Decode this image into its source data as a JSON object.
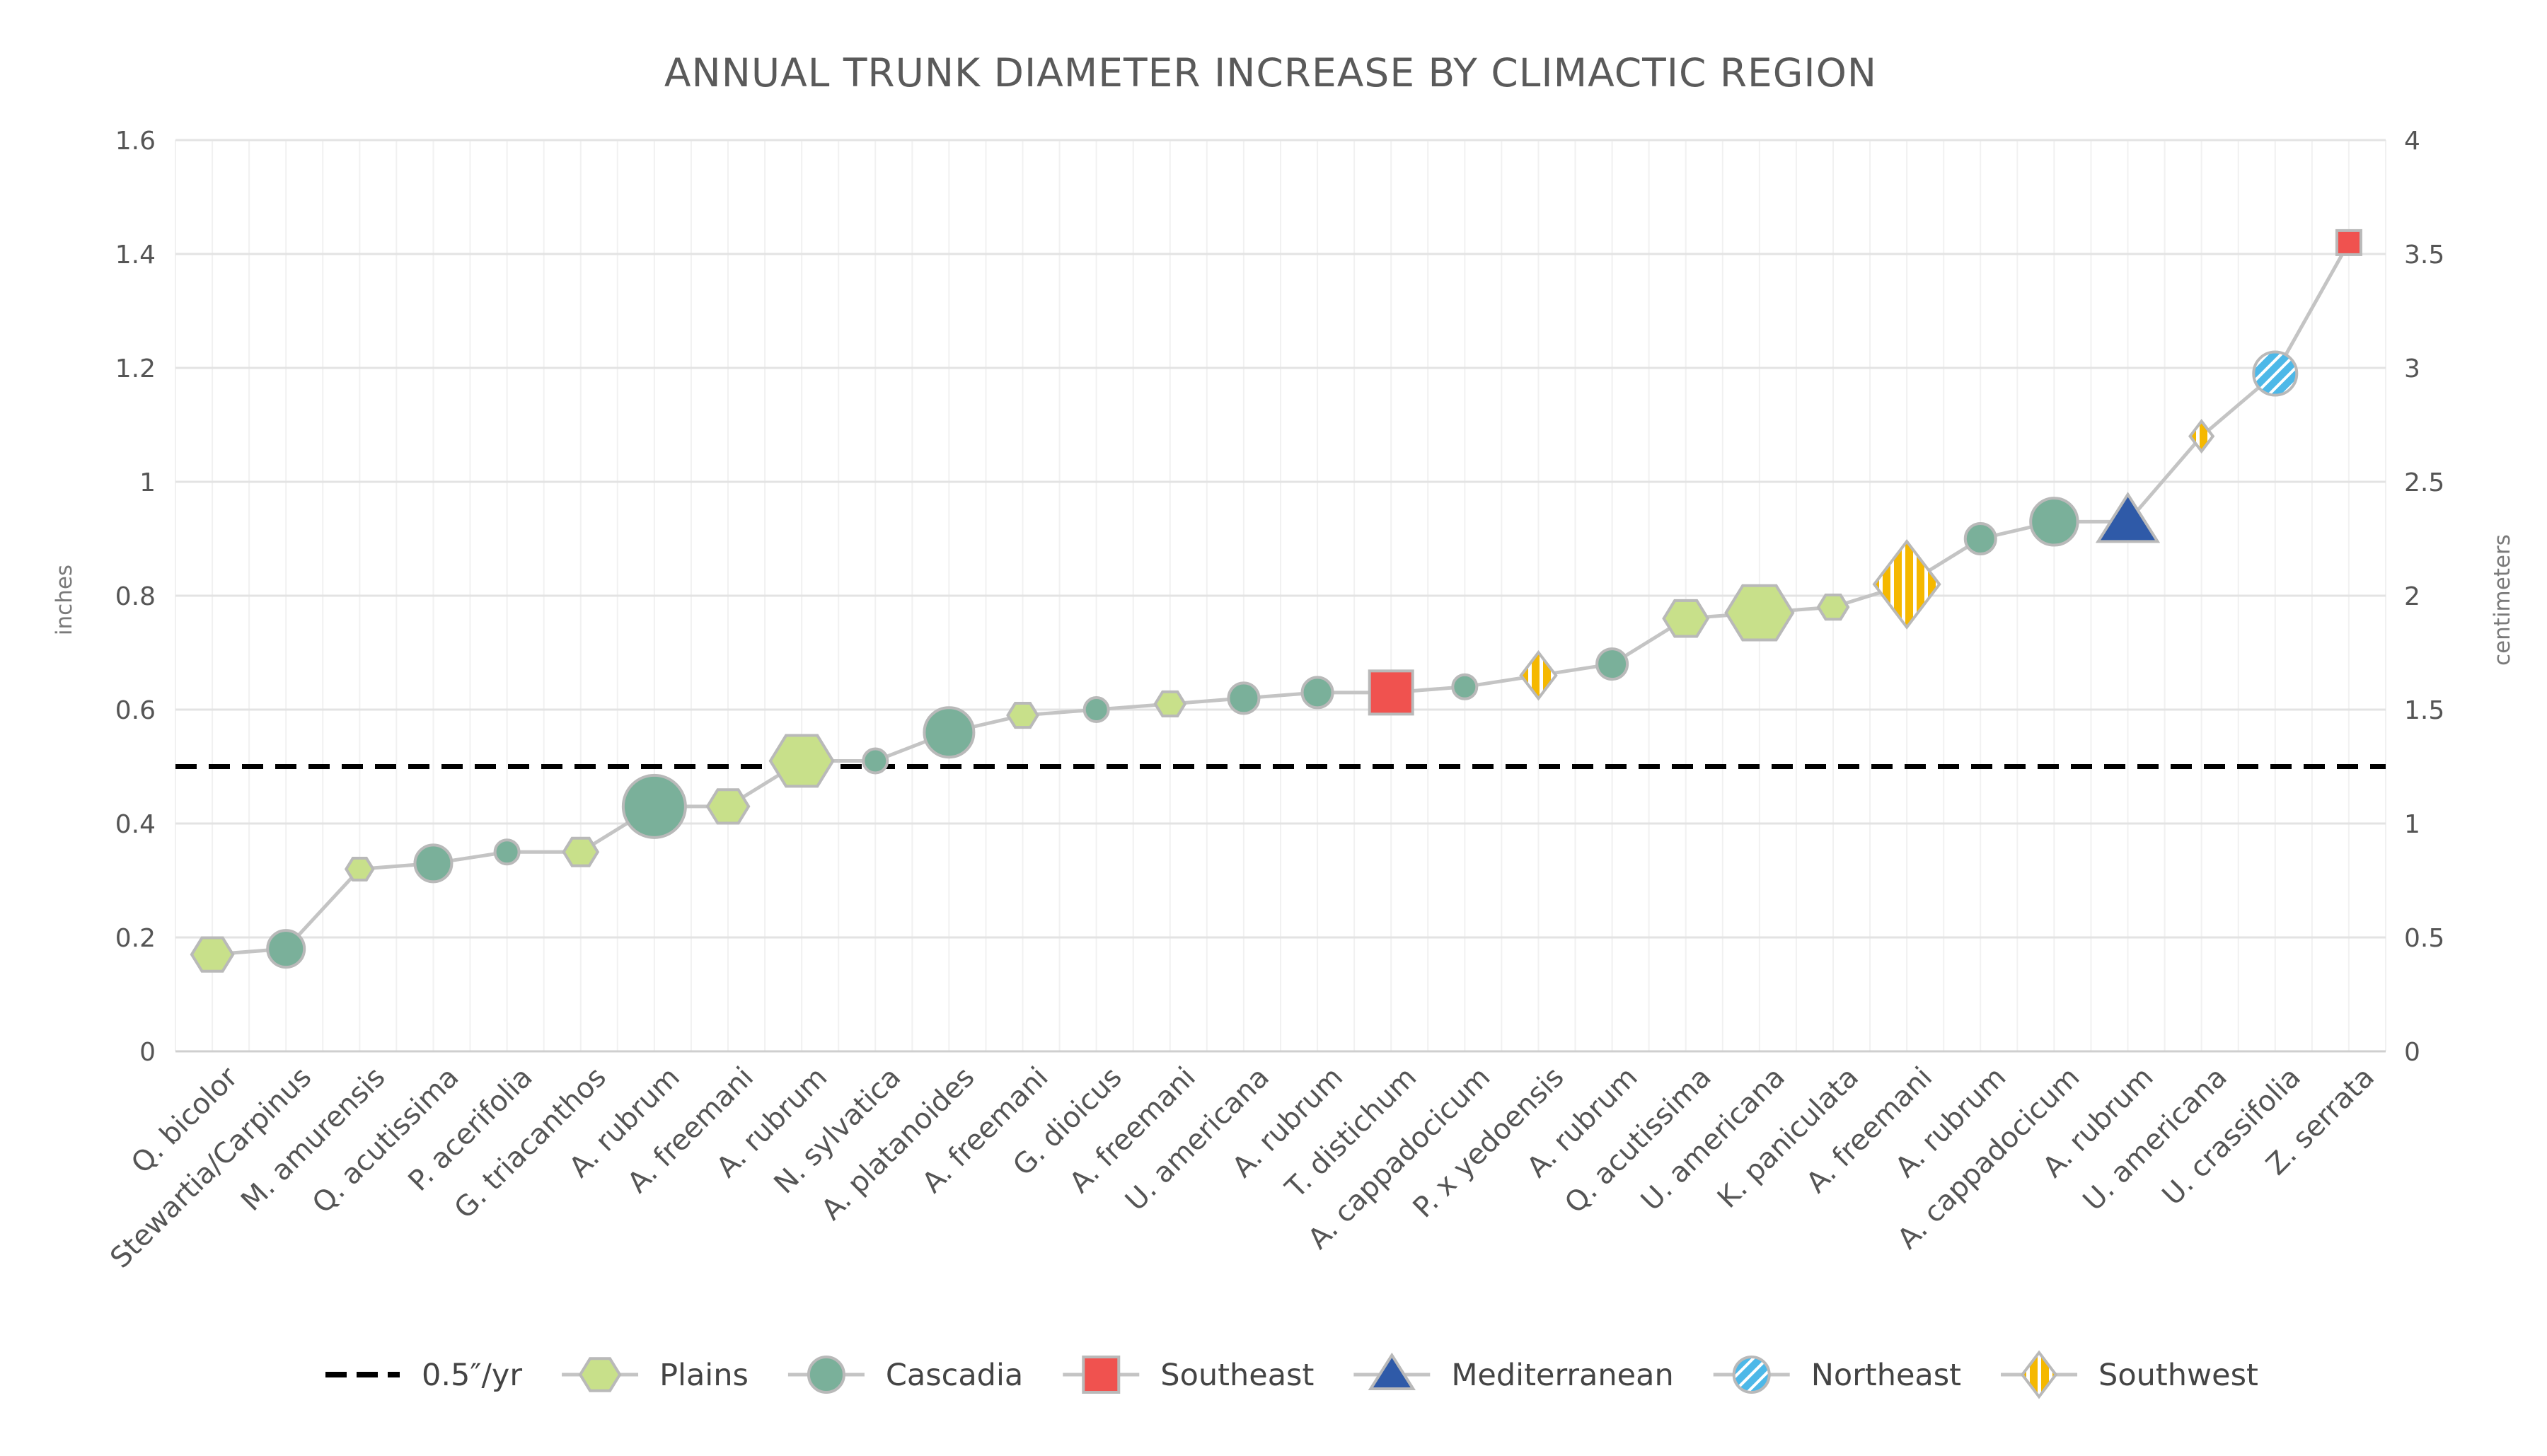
{
  "chart_data": {
    "type": "line",
    "title": "ANNUAL TRUNK DIAMETER INCREASE BY CLIMACTIC REGION",
    "ylabel_left": "inches",
    "ylabel_right": "centimeters",
    "ylim_left": [
      0,
      1.6
    ],
    "ylim_right": [
      0,
      4
    ],
    "yticks_left": [
      "0",
      "0.2",
      "0.4",
      "0.6",
      "0.8",
      "1",
      "1.2",
      "1.4",
      "1.6"
    ],
    "yticks_right": [
      "0",
      "0.5",
      "1",
      "1.5",
      "2",
      "2.5",
      "3",
      "3.5",
      "4"
    ],
    "grid": true,
    "legend_position": "bottom",
    "reference_line": {
      "name": "0.5″/yr",
      "value": 0.5,
      "style": "dashed",
      "color": "#000000"
    },
    "regions": [
      {
        "name": "Plains",
        "marker": "hexagon",
        "color": "#c8e08a"
      },
      {
        "name": "Cascadia",
        "marker": "circle",
        "color": "#7ab09a"
      },
      {
        "name": "Southeast",
        "marker": "square",
        "color": "#f0524f"
      },
      {
        "name": "Mediterranean",
        "marker": "triangle",
        "color": "#2f5aa8"
      },
      {
        "name": "Northeast",
        "marker": "circle-striped",
        "color": "#4db8e8"
      },
      {
        "name": "Southwest",
        "marker": "diamond-striped",
        "color": "#f5b800"
      }
    ],
    "points": [
      {
        "species": "Q. bicolor",
        "value": 0.17,
        "region": "Plains",
        "size": 2
      },
      {
        "species": "Stewartia/Carpinus",
        "value": 0.18,
        "region": "Cascadia",
        "size": 2
      },
      {
        "species": "M. amurensis",
        "value": 0.32,
        "region": "Plains",
        "size": 1
      },
      {
        "species": "Q. acutissima",
        "value": 0.33,
        "region": "Cascadia",
        "size": 2
      },
      {
        "species": "P. acerifolia",
        "value": 0.35,
        "region": "Cascadia",
        "size": 1
      },
      {
        "species": "G. triacanthos",
        "value": 0.35,
        "region": "Plains",
        "size": 1.5
      },
      {
        "species": "A. rubrum",
        "value": 0.43,
        "region": "Cascadia",
        "size": 4
      },
      {
        "species": "A. freemani",
        "value": 0.43,
        "region": "Plains",
        "size": 2
      },
      {
        "species": "A. rubrum",
        "value": 0.51,
        "region": "Plains",
        "size": 3.5
      },
      {
        "species": "N. sylvatica",
        "value": 0.51,
        "region": "Cascadia",
        "size": 1
      },
      {
        "species": "A. platanoides",
        "value": 0.56,
        "region": "Cascadia",
        "size": 3
      },
      {
        "species": "A. freemani",
        "value": 0.59,
        "region": "Plains",
        "size": 1.2
      },
      {
        "species": "G. dioicus",
        "value": 0.6,
        "region": "Cascadia",
        "size": 1
      },
      {
        "species": "A. freemani",
        "value": 0.61,
        "region": "Plains",
        "size": 1.2
      },
      {
        "species": "U. americana",
        "value": 0.62,
        "region": "Cascadia",
        "size": 1.5
      },
      {
        "species": "A. rubrum",
        "value": 0.63,
        "region": "Cascadia",
        "size": 1.5
      },
      {
        "species": "T. distichum",
        "value": 0.63,
        "region": "Southeast",
        "size": 2.5
      },
      {
        "species": "A. cappadocicum",
        "value": 0.64,
        "region": "Cascadia",
        "size": 1
      },
      {
        "species": "P. x yedoensis",
        "value": 0.66,
        "region": "Southwest",
        "size": 2
      },
      {
        "species": "A. rubrum",
        "value": 0.68,
        "region": "Cascadia",
        "size": 1.5
      },
      {
        "species": "Q. acutissima",
        "value": 0.76,
        "region": "Plains",
        "size": 2.2
      },
      {
        "species": "U. americana",
        "value": 0.77,
        "region": "Plains",
        "size": 3.8
      },
      {
        "species": "K. paniculata",
        "value": 0.78,
        "region": "Plains",
        "size": 1.2
      },
      {
        "species": "A. freemani",
        "value": 0.82,
        "region": "Southwest",
        "size": 4.5
      },
      {
        "species": "A. rubrum",
        "value": 0.9,
        "region": "Cascadia",
        "size": 1.5
      },
      {
        "species": "A. cappadocicum",
        "value": 0.93,
        "region": "Cascadia",
        "size": 2.8
      },
      {
        "species": "A. rubrum",
        "value": 0.93,
        "region": "Mediterranean",
        "size": 3
      },
      {
        "species": "U. americana",
        "value": 1.08,
        "region": "Southwest",
        "size": 1
      },
      {
        "species": "U. crassifolia",
        "value": 1.19,
        "region": "Northeast",
        "size": 2.5
      },
      {
        "species": "Z. serrata",
        "value": 1.42,
        "region": "Southeast",
        "size": 1
      }
    ]
  }
}
